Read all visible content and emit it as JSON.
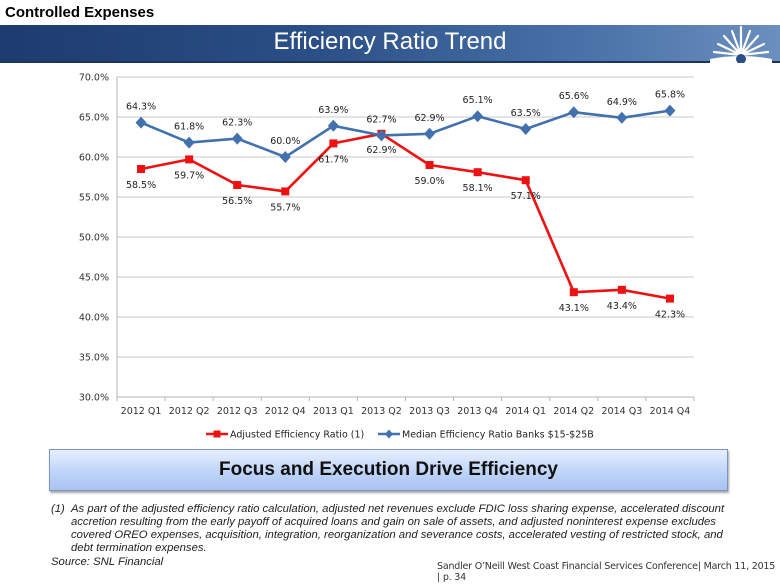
{
  "header": {
    "section_title": "Controlled Expenses",
    "banner_title": "Efficiency Ratio Trend",
    "logo_icon": "sunburst-logo-icon"
  },
  "colors": {
    "banner": "#2a4f86",
    "series_adjusted": "#ee1111",
    "series_median": "#4271ad",
    "gridline": "#c8c8c8"
  },
  "chart_data": {
    "type": "line",
    "title": "Efficiency Ratio Trend",
    "xlabel": "",
    "ylabel": "",
    "categories": [
      "2012 Q1",
      "2012 Q2",
      "2012 Q3",
      "2012 Q4",
      "2013 Q1",
      "2013 Q2",
      "2013 Q3",
      "2013 Q4",
      "2014 Q1",
      "2014 Q2",
      "2014 Q3",
      "2014 Q4"
    ],
    "ylim": [
      30,
      70
    ],
    "yticks": [
      30,
      35,
      40,
      45,
      50,
      55,
      60,
      65,
      70
    ],
    "ytick_labels": [
      "30.0%",
      "35.0%",
      "40.0%",
      "45.0%",
      "50.0%",
      "55.0%",
      "60.0%",
      "65.0%",
      "70.0%"
    ],
    "grid": true,
    "legend_position": "bottom",
    "series": [
      {
        "name": "Adjusted Efficiency Ratio (1)",
        "color": "#ee1111",
        "marker": "square",
        "values": [
          58.5,
          59.7,
          56.5,
          55.7,
          61.7,
          62.9,
          59.0,
          58.1,
          57.1,
          43.1,
          43.4,
          42.3
        ],
        "labels": [
          "58.5%",
          "59.7%",
          "56.5%",
          "55.7%",
          "61.7%",
          "62.9%",
          "59.0%",
          "58.1%",
          "57.1%",
          "43.1%",
          "43.4%",
          "42.3%"
        ]
      },
      {
        "name": "Median Efficiency Ratio Banks $15-$25B",
        "color": "#4271ad",
        "marker": "diamond",
        "values": [
          64.3,
          61.8,
          62.3,
          60.0,
          63.9,
          62.7,
          62.9,
          65.1,
          63.5,
          65.6,
          64.9,
          65.8
        ],
        "labels": [
          "64.3%",
          "61.8%",
          "62.3%",
          "60.0%",
          "63.9%",
          "62.7%",
          "62.9%",
          "65.1%",
          "63.5%",
          "65.6%",
          "64.9%",
          "65.8%"
        ]
      }
    ]
  },
  "callout": {
    "text": "Focus and Execution Drive Efficiency"
  },
  "footnote": {
    "number": "(1)",
    "text": "As part of the adjusted efficiency ratio calculation, adjusted net revenues exclude FDIC loss sharing expense, accelerated discount accretion resulting from the early payoff of acquired loans and gain on sale of assets, and adjusted noninterest expense excludes covered OREO expenses, acquisition, integration, reorganization and severance costs, accelerated vesting of restricted stock, and debt termination expenses.",
    "source": "Source: SNL Financial"
  },
  "footer": {
    "text": "Sandler O’Neill West Coast Financial Services Conference| March 11, 2015 | p. 34"
  }
}
